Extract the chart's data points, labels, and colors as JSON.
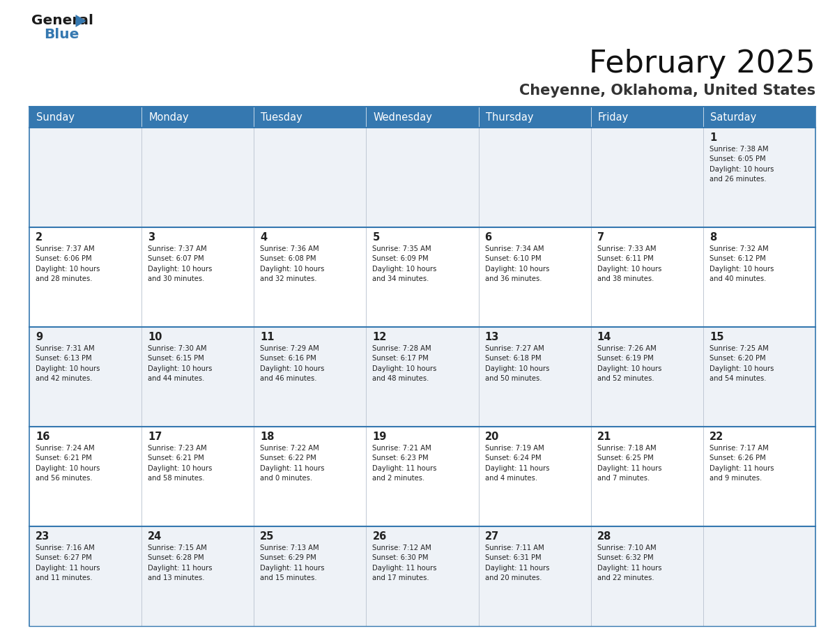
{
  "title": "February 2025",
  "subtitle": "Cheyenne, Oklahoma, United States",
  "header_color": "#3578b0",
  "header_text_color": "#ffffff",
  "cell_bg_even": "#eef2f7",
  "cell_bg_odd": "#ffffff",
  "border_color": "#3578b0",
  "row_line_color": "#3578b0",
  "text_color": "#222222",
  "day_headers": [
    "Sunday",
    "Monday",
    "Tuesday",
    "Wednesday",
    "Thursday",
    "Friday",
    "Saturday"
  ],
  "weeks": [
    [
      {
        "day": "",
        "info": ""
      },
      {
        "day": "",
        "info": ""
      },
      {
        "day": "",
        "info": ""
      },
      {
        "day": "",
        "info": ""
      },
      {
        "day": "",
        "info": ""
      },
      {
        "day": "",
        "info": ""
      },
      {
        "day": "1",
        "info": "Sunrise: 7:38 AM\nSunset: 6:05 PM\nDaylight: 10 hours\nand 26 minutes."
      }
    ],
    [
      {
        "day": "2",
        "info": "Sunrise: 7:37 AM\nSunset: 6:06 PM\nDaylight: 10 hours\nand 28 minutes."
      },
      {
        "day": "3",
        "info": "Sunrise: 7:37 AM\nSunset: 6:07 PM\nDaylight: 10 hours\nand 30 minutes."
      },
      {
        "day": "4",
        "info": "Sunrise: 7:36 AM\nSunset: 6:08 PM\nDaylight: 10 hours\nand 32 minutes."
      },
      {
        "day": "5",
        "info": "Sunrise: 7:35 AM\nSunset: 6:09 PM\nDaylight: 10 hours\nand 34 minutes."
      },
      {
        "day": "6",
        "info": "Sunrise: 7:34 AM\nSunset: 6:10 PM\nDaylight: 10 hours\nand 36 minutes."
      },
      {
        "day": "7",
        "info": "Sunrise: 7:33 AM\nSunset: 6:11 PM\nDaylight: 10 hours\nand 38 minutes."
      },
      {
        "day": "8",
        "info": "Sunrise: 7:32 AM\nSunset: 6:12 PM\nDaylight: 10 hours\nand 40 minutes."
      }
    ],
    [
      {
        "day": "9",
        "info": "Sunrise: 7:31 AM\nSunset: 6:13 PM\nDaylight: 10 hours\nand 42 minutes."
      },
      {
        "day": "10",
        "info": "Sunrise: 7:30 AM\nSunset: 6:15 PM\nDaylight: 10 hours\nand 44 minutes."
      },
      {
        "day": "11",
        "info": "Sunrise: 7:29 AM\nSunset: 6:16 PM\nDaylight: 10 hours\nand 46 minutes."
      },
      {
        "day": "12",
        "info": "Sunrise: 7:28 AM\nSunset: 6:17 PM\nDaylight: 10 hours\nand 48 minutes."
      },
      {
        "day": "13",
        "info": "Sunrise: 7:27 AM\nSunset: 6:18 PM\nDaylight: 10 hours\nand 50 minutes."
      },
      {
        "day": "14",
        "info": "Sunrise: 7:26 AM\nSunset: 6:19 PM\nDaylight: 10 hours\nand 52 minutes."
      },
      {
        "day": "15",
        "info": "Sunrise: 7:25 AM\nSunset: 6:20 PM\nDaylight: 10 hours\nand 54 minutes."
      }
    ],
    [
      {
        "day": "16",
        "info": "Sunrise: 7:24 AM\nSunset: 6:21 PM\nDaylight: 10 hours\nand 56 minutes."
      },
      {
        "day": "17",
        "info": "Sunrise: 7:23 AM\nSunset: 6:21 PM\nDaylight: 10 hours\nand 58 minutes."
      },
      {
        "day": "18",
        "info": "Sunrise: 7:22 AM\nSunset: 6:22 PM\nDaylight: 11 hours\nand 0 minutes."
      },
      {
        "day": "19",
        "info": "Sunrise: 7:21 AM\nSunset: 6:23 PM\nDaylight: 11 hours\nand 2 minutes."
      },
      {
        "day": "20",
        "info": "Sunrise: 7:19 AM\nSunset: 6:24 PM\nDaylight: 11 hours\nand 4 minutes."
      },
      {
        "day": "21",
        "info": "Sunrise: 7:18 AM\nSunset: 6:25 PM\nDaylight: 11 hours\nand 7 minutes."
      },
      {
        "day": "22",
        "info": "Sunrise: 7:17 AM\nSunset: 6:26 PM\nDaylight: 11 hours\nand 9 minutes."
      }
    ],
    [
      {
        "day": "23",
        "info": "Sunrise: 7:16 AM\nSunset: 6:27 PM\nDaylight: 11 hours\nand 11 minutes."
      },
      {
        "day": "24",
        "info": "Sunrise: 7:15 AM\nSunset: 6:28 PM\nDaylight: 11 hours\nand 13 minutes."
      },
      {
        "day": "25",
        "info": "Sunrise: 7:13 AM\nSunset: 6:29 PM\nDaylight: 11 hours\nand 15 minutes."
      },
      {
        "day": "26",
        "info": "Sunrise: 7:12 AM\nSunset: 6:30 PM\nDaylight: 11 hours\nand 17 minutes."
      },
      {
        "day": "27",
        "info": "Sunrise: 7:11 AM\nSunset: 6:31 PM\nDaylight: 11 hours\nand 20 minutes."
      },
      {
        "day": "28",
        "info": "Sunrise: 7:10 AM\nSunset: 6:32 PM\nDaylight: 11 hours\nand 22 minutes."
      },
      {
        "day": "",
        "info": ""
      }
    ]
  ]
}
